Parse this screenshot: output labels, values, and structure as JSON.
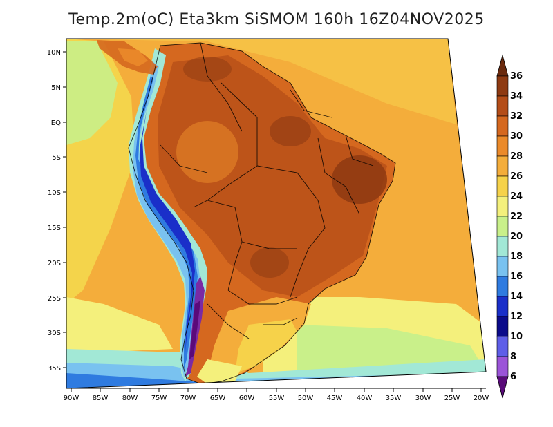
{
  "title": "Temp.2m(oC) Eta3km SiSMOM 160h 16Z04NOV2025",
  "lat_labels": [
    "10N",
    "5N",
    "EQ",
    "5S",
    "10S",
    "15S",
    "20S",
    "25S",
    "30S",
    "35S"
  ],
  "lon_labels": [
    "90W",
    "85W",
    "80W",
    "75W",
    "70W",
    "65W",
    "60W",
    "55W",
    "50W",
    "45W",
    "40W",
    "35W",
    "30W",
    "25W",
    "20W"
  ],
  "colorbar": {
    "labels": [
      "36",
      "34",
      "32",
      "30",
      "28",
      "26",
      "24",
      "22",
      "20",
      "18",
      "16",
      "14",
      "12",
      "10",
      "8",
      "6"
    ],
    "colors": [
      "#6a2a0e",
      "#8e3a12",
      "#b44d18",
      "#d5681f",
      "#eb8a2a",
      "#f4ad3b",
      "#f6d24a",
      "#f4f07c",
      "#c9f08a",
      "#a2e8d6",
      "#79c2f0",
      "#2f7be0",
      "#1a2fc9",
      "#0b0b8a",
      "#5e5ee8",
      "#9b54d8",
      "#7a2aa4",
      "#5a0a7a"
    ]
  }
}
